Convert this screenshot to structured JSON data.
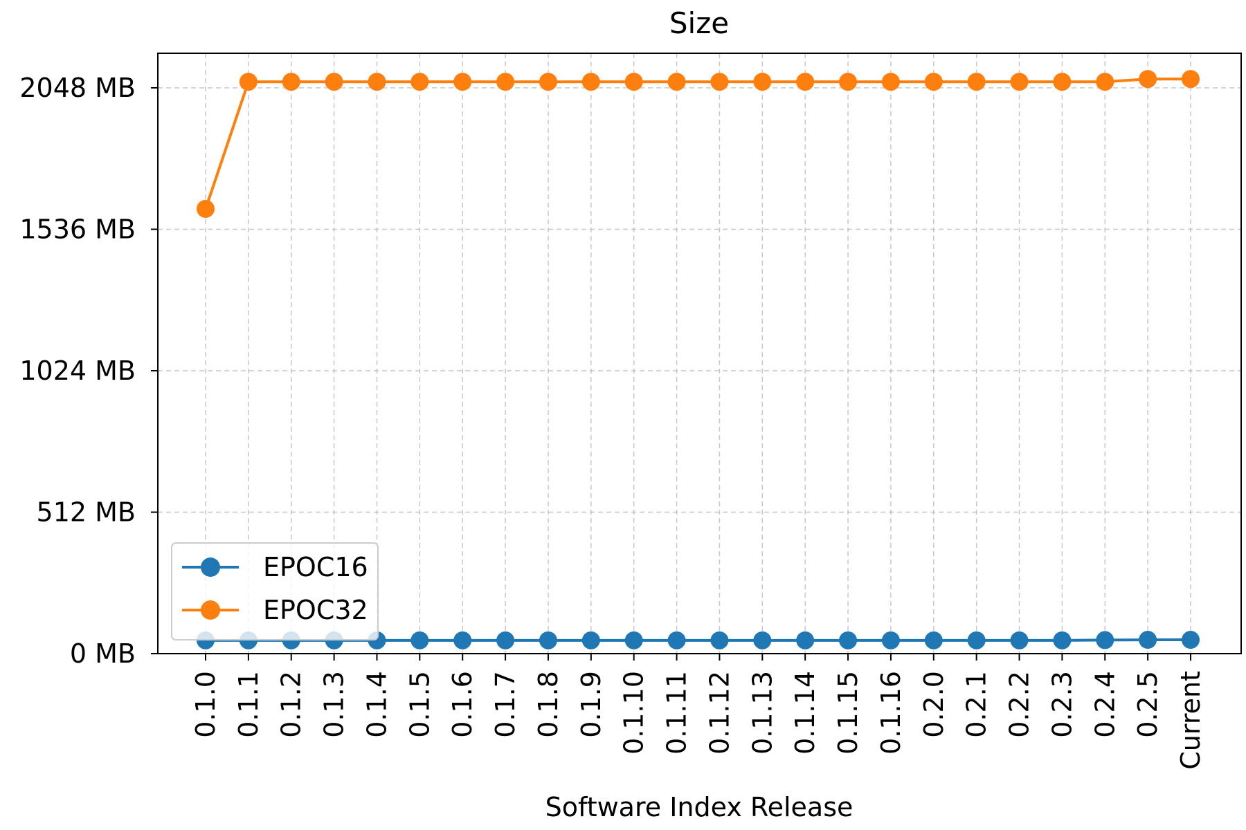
{
  "chart_data": {
    "type": "line",
    "title": "Size",
    "xlabel": "Software Index Release",
    "ylabel": "",
    "categories": [
      "0.1.0",
      "0.1.1",
      "0.1.2",
      "0.1.3",
      "0.1.4",
      "0.1.5",
      "0.1.6",
      "0.1.7",
      "0.1.8",
      "0.1.9",
      "0.1.10",
      "0.1.11",
      "0.1.12",
      "0.1.13",
      "0.1.14",
      "0.1.15",
      "0.1.16",
      "0.2.0",
      "0.2.1",
      "0.2.2",
      "0.2.3",
      "0.2.4",
      "0.2.5",
      "Current"
    ],
    "yticks": [
      0,
      512,
      1024,
      1536,
      2048
    ],
    "ytick_labels": [
      "0 MB",
      "512 MB",
      "1024 MB",
      "1536 MB",
      "2048 MB"
    ],
    "ylim": [
      0,
      2180
    ],
    "grid": true,
    "legend_position": "lower-left",
    "series": [
      {
        "name": "EPOC16",
        "color": "#1f77b4",
        "values": [
          48,
          48,
          48,
          48,
          48,
          48,
          48,
          48,
          48,
          48,
          48,
          48,
          48,
          48,
          48,
          48,
          48,
          48,
          48,
          48,
          48,
          49,
          50,
          50
        ]
      },
      {
        "name": "EPOC32",
        "color": "#ff7f0e",
        "values": [
          1610,
          2070,
          2070,
          2070,
          2070,
          2070,
          2070,
          2070,
          2070,
          2070,
          2070,
          2070,
          2070,
          2070,
          2070,
          2070,
          2070,
          2070,
          2070,
          2070,
          2070,
          2070,
          2080,
          2080
        ]
      }
    ]
  }
}
